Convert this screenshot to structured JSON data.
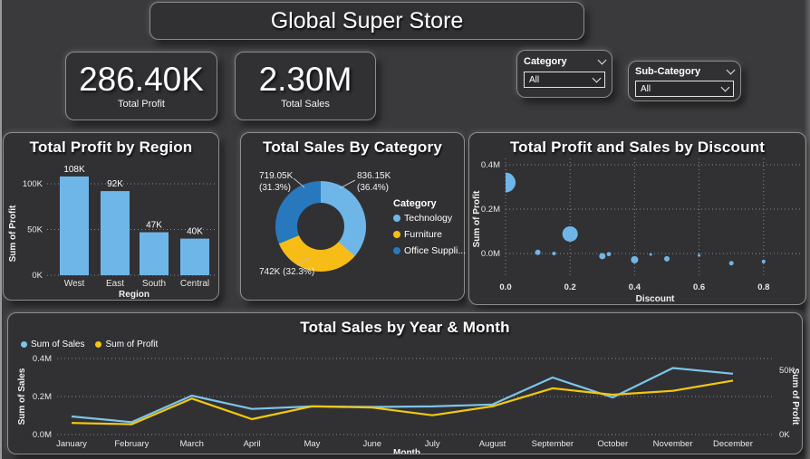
{
  "page": {
    "title": "Global Super Store"
  },
  "kpis": [
    {
      "value": "286.40K",
      "label": "Total Profit"
    },
    {
      "value": "2.30M",
      "label": "Total Sales"
    }
  ],
  "slicers": [
    {
      "label": "Category",
      "value": "All"
    },
    {
      "label": "Sub-Category",
      "value": "All"
    }
  ],
  "colors": {
    "page_bg": "#3A3A3C",
    "panel_bg": "#313134",
    "blue": "#6FB6E8",
    "yellow": "#F7BC16",
    "dark_blue": "#2878BD",
    "line_sales": "#7CC4EA",
    "line_profit": "#F2C811"
  },
  "chart_data": [
    {
      "id": "profit_by_region",
      "type": "bar",
      "title": "Total Profit by Region",
      "xlabel": "Region",
      "ylabel": "Sum of Profit",
      "categories": [
        "West",
        "East",
        "South",
        "Central"
      ],
      "values": [
        108000,
        92000,
        47000,
        40000
      ],
      "data_labels": [
        "108K",
        "92K",
        "47K",
        "40K"
      ],
      "yticks": [
        {
          "value": 0,
          "label": "0K"
        },
        {
          "value": 50000,
          "label": "50K"
        },
        {
          "value": 100000,
          "label": "100K"
        }
      ],
      "ylim": [
        0,
        115000
      ],
      "color": "#6FB6E8",
      "grid": true
    },
    {
      "id": "sales_by_category",
      "type": "pie",
      "title": "Total Sales By Category",
      "legend_title": "Category",
      "legend_position": "right",
      "slices": [
        {
          "name": "Technology",
          "legend_label": "Technology",
          "pct": 36.4,
          "value_label": "836.15K",
          "callout_lines": [
            "836.15K",
            "(36.4%)"
          ],
          "color": "#6FB6E8"
        },
        {
          "name": "Furniture",
          "legend_label": "Furniture",
          "pct": 32.3,
          "value_label": "742K",
          "callout_lines": [
            "742K (32.3%)"
          ],
          "color": "#F7BC16"
        },
        {
          "name": "Office Supplies",
          "legend_label": "Office Suppli...",
          "pct": 31.3,
          "value_label": "719.05K",
          "callout_lines": [
            "719.05K",
            "(31.3%)"
          ],
          "color": "#2878BD"
        }
      ]
    },
    {
      "id": "profit_sales_by_discount",
      "type": "scatter",
      "title": "Total Profit and Sales by Discount",
      "xlabel": "Discount",
      "ylabel": "Sum of Profit",
      "xticks": [
        {
          "value": 0,
          "label": "0.0"
        },
        {
          "value": 0.2,
          "label": "0.2"
        },
        {
          "value": 0.4,
          "label": "0.4"
        },
        {
          "value": 0.6,
          "label": "0.6"
        },
        {
          "value": 0.8,
          "label": "0.8"
        }
      ],
      "yticks": [
        {
          "value": 0,
          "label": "0.0M"
        },
        {
          "value": 200000,
          "label": "0.2M"
        },
        {
          "value": 400000,
          "label": "0.4M"
        }
      ],
      "xlim": [
        0,
        0.95
      ],
      "ylim": [
        -110000,
        430000
      ],
      "color": "#6FB6E8",
      "grid": true,
      "points": [
        {
          "x": 0.0,
          "y": 320000,
          "r": 11
        },
        {
          "x": 0.1,
          "y": 5000,
          "r": 3
        },
        {
          "x": 0.15,
          "y": 0,
          "r": 2
        },
        {
          "x": 0.2,
          "y": 88000,
          "r": 8.5
        },
        {
          "x": 0.3,
          "y": -12000,
          "r": 3.5
        },
        {
          "x": 0.32,
          "y": -3000,
          "r": 2.3
        },
        {
          "x": 0.4,
          "y": -28000,
          "r": 4
        },
        {
          "x": 0.45,
          "y": -4000,
          "r": 1.5
        },
        {
          "x": 0.5,
          "y": -24000,
          "r": 3
        },
        {
          "x": 0.6,
          "y": -8000,
          "r": 1.5
        },
        {
          "x": 0.7,
          "y": -44000,
          "r": 2.5
        },
        {
          "x": 0.8,
          "y": -36000,
          "r": 2
        }
      ]
    },
    {
      "id": "sales_by_year_month",
      "type": "line",
      "title": "Total Sales by Year & Month",
      "xlabel": "Month",
      "categories": [
        "January",
        "February",
        "March",
        "April",
        "May",
        "June",
        "July",
        "August",
        "September",
        "October",
        "November",
        "December"
      ],
      "series": [
        {
          "name": "Sum of Sales",
          "axis": "left",
          "color": "#7CC4EA",
          "values": [
            95000,
            65000,
            205000,
            135000,
            148000,
            145000,
            148000,
            158000,
            300000,
            195000,
            350000,
            320000
          ]
        },
        {
          "name": "Sum of Profit",
          "axis": "right",
          "color": "#F2C811",
          "values": [
            9000,
            8000,
            28000,
            12000,
            22000,
            21000,
            15000,
            22000,
            36000,
            31000,
            34000,
            42000
          ]
        }
      ],
      "left_axis": {
        "label": "Sum of Sales",
        "ticks": [
          {
            "value": 0,
            "label": "0.0M"
          },
          {
            "value": 200000,
            "label": "0.2M"
          },
          {
            "value": 400000,
            "label": "0.4M"
          }
        ]
      },
      "right_axis": {
        "label": "Sum of Profit",
        "ticks": [
          {
            "value": 0,
            "label": "0K"
          },
          {
            "value": 50000,
            "label": "50K"
          }
        ]
      },
      "legend_position": "top-left",
      "grid": true
    }
  ]
}
